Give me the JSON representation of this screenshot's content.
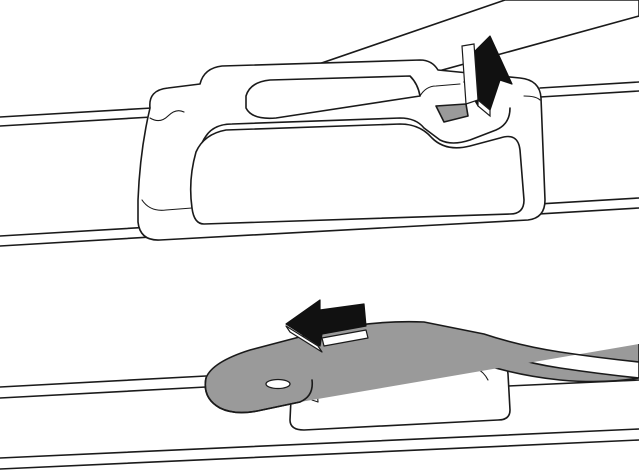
{
  "figure": {
    "kind": "wiper blade removal illustration",
    "panels": [
      {
        "id": "top",
        "arrow": "up",
        "arrow_color": "#111111"
      },
      {
        "id": "bottom",
        "arrow": "left",
        "arrow_color": "#111111"
      }
    ],
    "colors": {
      "line": "#1a1a1a",
      "arm_fill": "#9a9a9a",
      "background": "#ffffff"
    }
  }
}
